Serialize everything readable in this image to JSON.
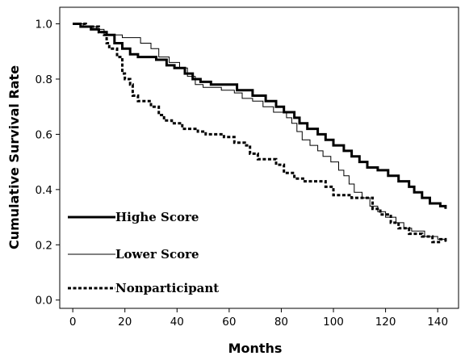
{
  "chart_data": {
    "type": "line",
    "step": true,
    "xlabel": "Months",
    "ylabel": "Cumulative Survival Rate",
    "xlim": [
      -5,
      148
    ],
    "ylim": [
      -0.03,
      1.06
    ],
    "xticks": [
      0,
      20,
      40,
      60,
      80,
      100,
      120,
      140
    ],
    "yticks": [
      0.0,
      0.2,
      0.4,
      0.6,
      0.8,
      1.0
    ],
    "xtick_labels": [
      "0",
      "20",
      "40",
      "60",
      "80",
      "100",
      "120",
      "140"
    ],
    "ytick_labels": [
      "0.0",
      "0.2",
      "0.4",
      "0.6",
      "0.8",
      "1.0"
    ],
    "grid": false,
    "legend_position": "bottom-left",
    "series": [
      {
        "name": "Highe Score",
        "style": "thick-solid",
        "points": [
          [
            0,
            1.0
          ],
          [
            3,
            0.99
          ],
          [
            7,
            0.98
          ],
          [
            10,
            0.97
          ],
          [
            13,
            0.96
          ],
          [
            16,
            0.93
          ],
          [
            19,
            0.91
          ],
          [
            22,
            0.89
          ],
          [
            25,
            0.88
          ],
          [
            32,
            0.87
          ],
          [
            36,
            0.85
          ],
          [
            39,
            0.84
          ],
          [
            43,
            0.82
          ],
          [
            46,
            0.8
          ],
          [
            49,
            0.79
          ],
          [
            53,
            0.78
          ],
          [
            63,
            0.76
          ],
          [
            69,
            0.74
          ],
          [
            74,
            0.72
          ],
          [
            78,
            0.7
          ],
          [
            81,
            0.68
          ],
          [
            85,
            0.66
          ],
          [
            87,
            0.64
          ],
          [
            90,
            0.62
          ],
          [
            94,
            0.6
          ],
          [
            97,
            0.58
          ],
          [
            100,
            0.56
          ],
          [
            104,
            0.54
          ],
          [
            107,
            0.52
          ],
          [
            110,
            0.5
          ],
          [
            113,
            0.48
          ],
          [
            117,
            0.47
          ],
          [
            121,
            0.45
          ],
          [
            125,
            0.43
          ],
          [
            129,
            0.41
          ],
          [
            131,
            0.39
          ],
          [
            134,
            0.37
          ],
          [
            137,
            0.35
          ],
          [
            141,
            0.34
          ],
          [
            143,
            0.33
          ]
        ]
      },
      {
        "name": "Lower Score",
        "style": "thin-solid",
        "points": [
          [
            0,
            1.0
          ],
          [
            4,
            0.99
          ],
          [
            9,
            0.98
          ],
          [
            12,
            0.96
          ],
          [
            15,
            0.96
          ],
          [
            19,
            0.95
          ],
          [
            26,
            0.93
          ],
          [
            30,
            0.91
          ],
          [
            33,
            0.88
          ],
          [
            37,
            0.86
          ],
          [
            41,
            0.84
          ],
          [
            44,
            0.81
          ],
          [
            47,
            0.78
          ],
          [
            50,
            0.77
          ],
          [
            57,
            0.76
          ],
          [
            62,
            0.75
          ],
          [
            65,
            0.73
          ],
          [
            69,
            0.72
          ],
          [
            73,
            0.7
          ],
          [
            77,
            0.68
          ],
          [
            82,
            0.66
          ],
          [
            84,
            0.64
          ],
          [
            86,
            0.61
          ],
          [
            88,
            0.58
          ],
          [
            91,
            0.56
          ],
          [
            94,
            0.54
          ],
          [
            96,
            0.52
          ],
          [
            99,
            0.5
          ],
          [
            102,
            0.47
          ],
          [
            104,
            0.45
          ],
          [
            106,
            0.42
          ],
          [
            108,
            0.39
          ],
          [
            111,
            0.37
          ],
          [
            114,
            0.34
          ],
          [
            117,
            0.32
          ],
          [
            120,
            0.3
          ],
          [
            124,
            0.28
          ],
          [
            127,
            0.26
          ],
          [
            130,
            0.25
          ],
          [
            135,
            0.23
          ],
          [
            140,
            0.22
          ],
          [
            143,
            0.21
          ]
        ]
      },
      {
        "name": "Nonparticipant",
        "style": "dashed",
        "points": [
          [
            0,
            1.0
          ],
          [
            5,
            0.99
          ],
          [
            10,
            0.97
          ],
          [
            12,
            0.96
          ],
          [
            13,
            0.93
          ],
          [
            14,
            0.91
          ],
          [
            17,
            0.88
          ],
          [
            19,
            0.82
          ],
          [
            20,
            0.8
          ],
          [
            22,
            0.78
          ],
          [
            23,
            0.74
          ],
          [
            25,
            0.72
          ],
          [
            30,
            0.7
          ],
          [
            33,
            0.67
          ],
          [
            35,
            0.65
          ],
          [
            38,
            0.64
          ],
          [
            42,
            0.62
          ],
          [
            48,
            0.61
          ],
          [
            51,
            0.6
          ],
          [
            58,
            0.59
          ],
          [
            62,
            0.57
          ],
          [
            66,
            0.56
          ],
          [
            68,
            0.53
          ],
          [
            71,
            0.51
          ],
          [
            78,
            0.49
          ],
          [
            81,
            0.46
          ],
          [
            85,
            0.44
          ],
          [
            89,
            0.43
          ],
          [
            97,
            0.41
          ],
          [
            100,
            0.38
          ],
          [
            105,
            0.38
          ],
          [
            107,
            0.37
          ],
          [
            115,
            0.33
          ],
          [
            118,
            0.31
          ],
          [
            122,
            0.28
          ],
          [
            125,
            0.26
          ],
          [
            129,
            0.24
          ],
          [
            134,
            0.23
          ],
          [
            138,
            0.21
          ],
          [
            141,
            0.22
          ],
          [
            143,
            0.21
          ]
        ]
      }
    ]
  }
}
